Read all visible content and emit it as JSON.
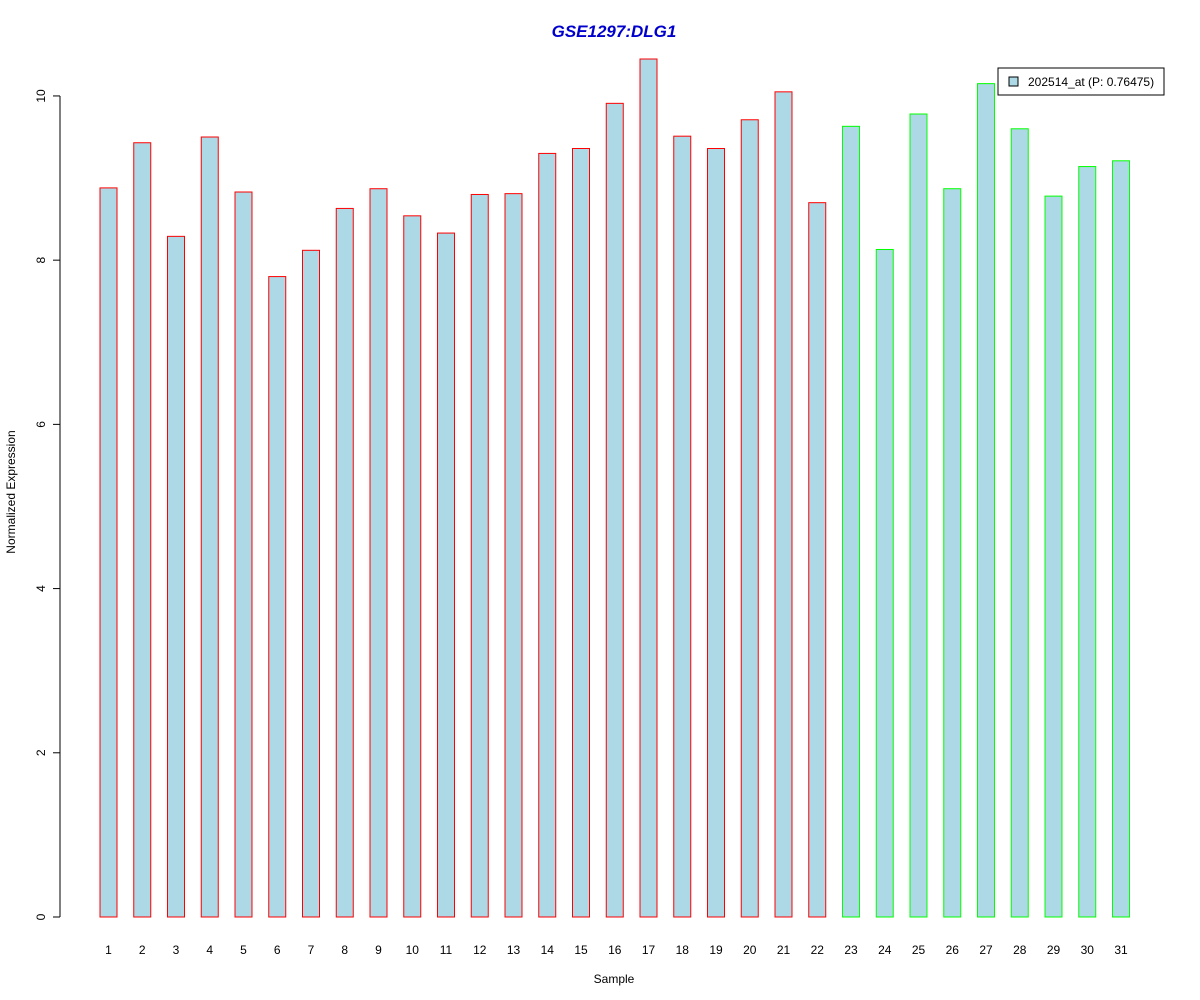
{
  "chart_data": {
    "type": "bar",
    "title": "GSE1297:DLG1",
    "xlabel": "Sample",
    "ylabel": "Normalized Expression",
    "categories": [
      "1",
      "2",
      "3",
      "4",
      "5",
      "6",
      "7",
      "8",
      "9",
      "10",
      "11",
      "12",
      "13",
      "14",
      "15",
      "16",
      "17",
      "18",
      "19",
      "20",
      "21",
      "22",
      "23",
      "24",
      "25",
      "26",
      "27",
      "28",
      "29",
      "30",
      "31"
    ],
    "values": [
      8.88,
      9.43,
      8.29,
      9.5,
      8.83,
      7.8,
      8.12,
      8.63,
      8.87,
      8.54,
      8.33,
      8.8,
      8.81,
      9.3,
      9.36,
      9.91,
      10.45,
      9.51,
      9.36,
      9.71,
      10.05,
      8.7,
      9.63,
      8.13,
      9.78,
      8.87,
      10.15,
      9.6,
      8.78,
      9.14,
      9.21
    ],
    "groups": [
      "a",
      "a",
      "a",
      "a",
      "a",
      "a",
      "a",
      "a",
      "a",
      "a",
      "a",
      "a",
      "a",
      "a",
      "a",
      "a",
      "a",
      "a",
      "a",
      "a",
      "a",
      "a",
      "b",
      "b",
      "b",
      "b",
      "b",
      "b",
      "b",
      "b",
      "b"
    ],
    "group_colors": {
      "a": "#ff0000",
      "b": "#00ff00"
    },
    "bar_fill": "#add8e6",
    "title_color": "#0000cc",
    "yticks": [
      0,
      2,
      4,
      6,
      8,
      10
    ],
    "ylim": [
      0,
      10.45
    ],
    "grid": false,
    "legend": {
      "placement": "top-right",
      "entries": [
        {
          "label": "202514_at (P: 0.76475)",
          "fill": "#add8e6"
        }
      ]
    }
  }
}
